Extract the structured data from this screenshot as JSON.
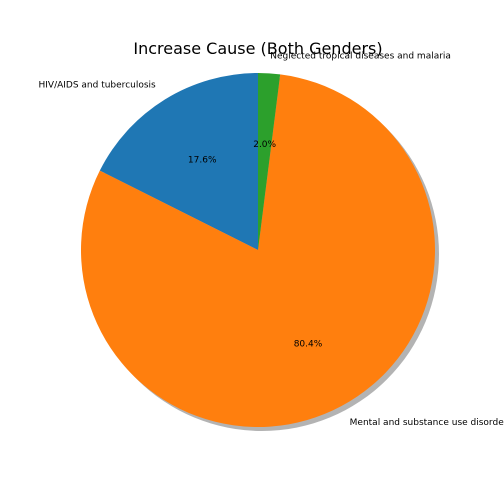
{
  "chart_data": {
    "type": "pie",
    "title": "Increase Cause (Both Genders)",
    "categories": [
      "HIV/AIDS and tuberculosis",
      "Mental and substance use disorders",
      "Neglected tropical diseases and malaria"
    ],
    "values": [
      17.6,
      80.4,
      2.0
    ],
    "value_labels": [
      "17.6%",
      "80.4%",
      "2.0%"
    ],
    "colors": [
      "#1f77b4",
      "#ff7f0e",
      "#2ca02c"
    ],
    "start_angle_deg": 90,
    "direction": "counterclockwise",
    "shadow": true,
    "legend": "none"
  }
}
